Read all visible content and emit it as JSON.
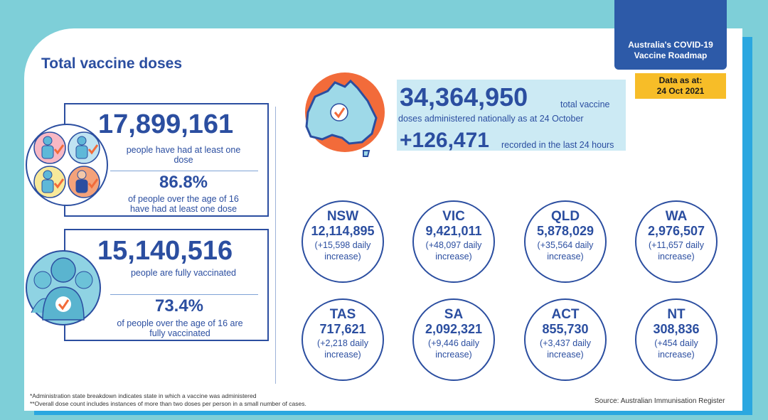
{
  "title": "Total vaccine doses",
  "roadmap": {
    "line1": "Australia's COVID-19",
    "line2": "Vaccine Roadmap"
  },
  "data_as_at": {
    "label": "Data as at:",
    "date": "24 Oct 2021"
  },
  "first_dose": {
    "count": "17,899,161",
    "desc_line1": "people have had at least one",
    "desc_line2": "dose",
    "percent": "86.8%",
    "percent_line1": "of people over the age of 16",
    "percent_line2": "have had at least one dose"
  },
  "fully_vaccinated": {
    "count": "15,140,516",
    "desc": "people are fully vaccinated",
    "percent": "73.4%",
    "percent_line1": "of people over the age of 16 are",
    "percent_line2": "fully vaccinated"
  },
  "national": {
    "total": "34,364,950",
    "total_suffix": "total vaccine",
    "total_line2": "doses administered nationally as at 24 October",
    "daily": "+126,471",
    "daily_suffix": "recorded in the last 24 hours"
  },
  "states": [
    {
      "code": "NSW",
      "count": "12,114,895",
      "inc1": "(+15,598 daily",
      "inc2": "increase)"
    },
    {
      "code": "VIC",
      "count": "9,421,011",
      "inc1": "(+48,097 daily",
      "inc2": "increase)"
    },
    {
      "code": "QLD",
      "count": "5,878,029",
      "inc1": "(+35,564 daily",
      "inc2": "increase)"
    },
    {
      "code": "WA",
      "count": "2,976,507",
      "inc1": "(+11,657 daily",
      "inc2": "increase)"
    },
    {
      "code": "TAS",
      "count": "717,621",
      "inc1": "(+2,218 daily",
      "inc2": "increase)"
    },
    {
      "code": "SA",
      "count": "2,092,321",
      "inc1": "(+9,446 daily",
      "inc2": "increase)"
    },
    {
      "code": "ACT",
      "count": "855,730",
      "inc1": "(+3,437 daily",
      "inc2": "increase)"
    },
    {
      "code": "NT",
      "count": "308,836",
      "inc1": "(+454 daily",
      "inc2": "increase)"
    }
  ],
  "footnotes": {
    "line1": "*Administration state breakdown indicates state in which a vaccine was administered",
    "line2": "**Overall dose count includes instances of more than two doses per person in a small number of cases."
  },
  "source": "Source: Australian Immunisation Register",
  "colors": {
    "brand_blue": "#2b4ea0",
    "teal": "#7ecfd8",
    "accent_orange": "#f26b3a",
    "highlight_yellow": "#f7bd28"
  },
  "icons": [
    "people-group-check-icon",
    "person-silhouette-check-icon",
    "australia-map-check-icon"
  ]
}
